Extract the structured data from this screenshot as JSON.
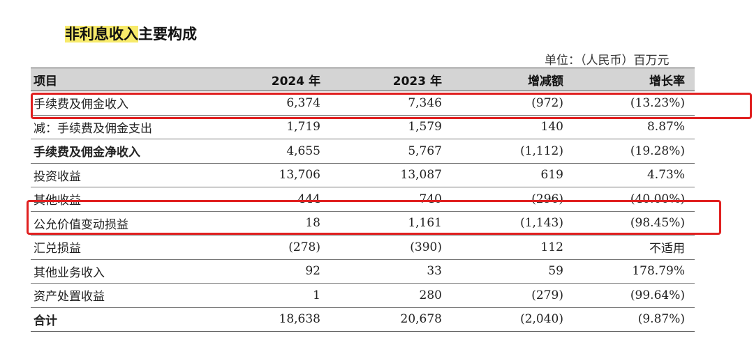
{
  "title": {
    "highlight": "非利息收入",
    "rest": "主要构成"
  },
  "unit": "单位：（人民币）百万元",
  "table": {
    "headers": [
      "项目",
      "2024 年",
      "2023 年",
      "增减额",
      "增长率"
    ],
    "rows": [
      {
        "item": "手续费及佣金收入",
        "y2024": "6,374",
        "y2023": "7,346",
        "change": "(972)",
        "growth": "(13.23%)"
      },
      {
        "item": "减：手续费及佣金支出",
        "y2024": "1,719",
        "y2023": "1,579",
        "change": "140",
        "growth": "8.87%"
      },
      {
        "item": "手续费及佣金净收入",
        "y2024": "4,655",
        "y2023": "5,767",
        "change": "(1,112)",
        "growth": "(19.28%)"
      },
      {
        "item": "投资收益",
        "y2024": "13,706",
        "y2023": "13,087",
        "change": "619",
        "growth": "4.73%"
      },
      {
        "item": "其他收益",
        "y2024": "444",
        "y2023": "740",
        "change": "(296)",
        "growth": "(40.00%)"
      },
      {
        "item": "公允价值变动损益",
        "y2024": "18",
        "y2023": "1,161",
        "change": "(1,143)",
        "growth": "(98.45%)"
      },
      {
        "item": "汇兑损益",
        "y2024": "(278)",
        "y2023": "(390)",
        "change": "112",
        "growth": "不适用"
      },
      {
        "item": "其他业务收入",
        "y2024": "92",
        "y2023": "33",
        "change": "59",
        "growth": "178.79%"
      },
      {
        "item": "资产处置收益",
        "y2024": "1",
        "y2023": "280",
        "change": "(279)",
        "growth": "(99.64%)"
      },
      {
        "item": "合计",
        "y2024": "18,638",
        "y2023": "20,678",
        "change": "(2,040)",
        "growth": "(9.87%)"
      }
    ]
  },
  "colors": {
    "highlight": "#f7ea6a",
    "annotation_box": "#e02020",
    "header_bg": "#d4d4d4"
  }
}
